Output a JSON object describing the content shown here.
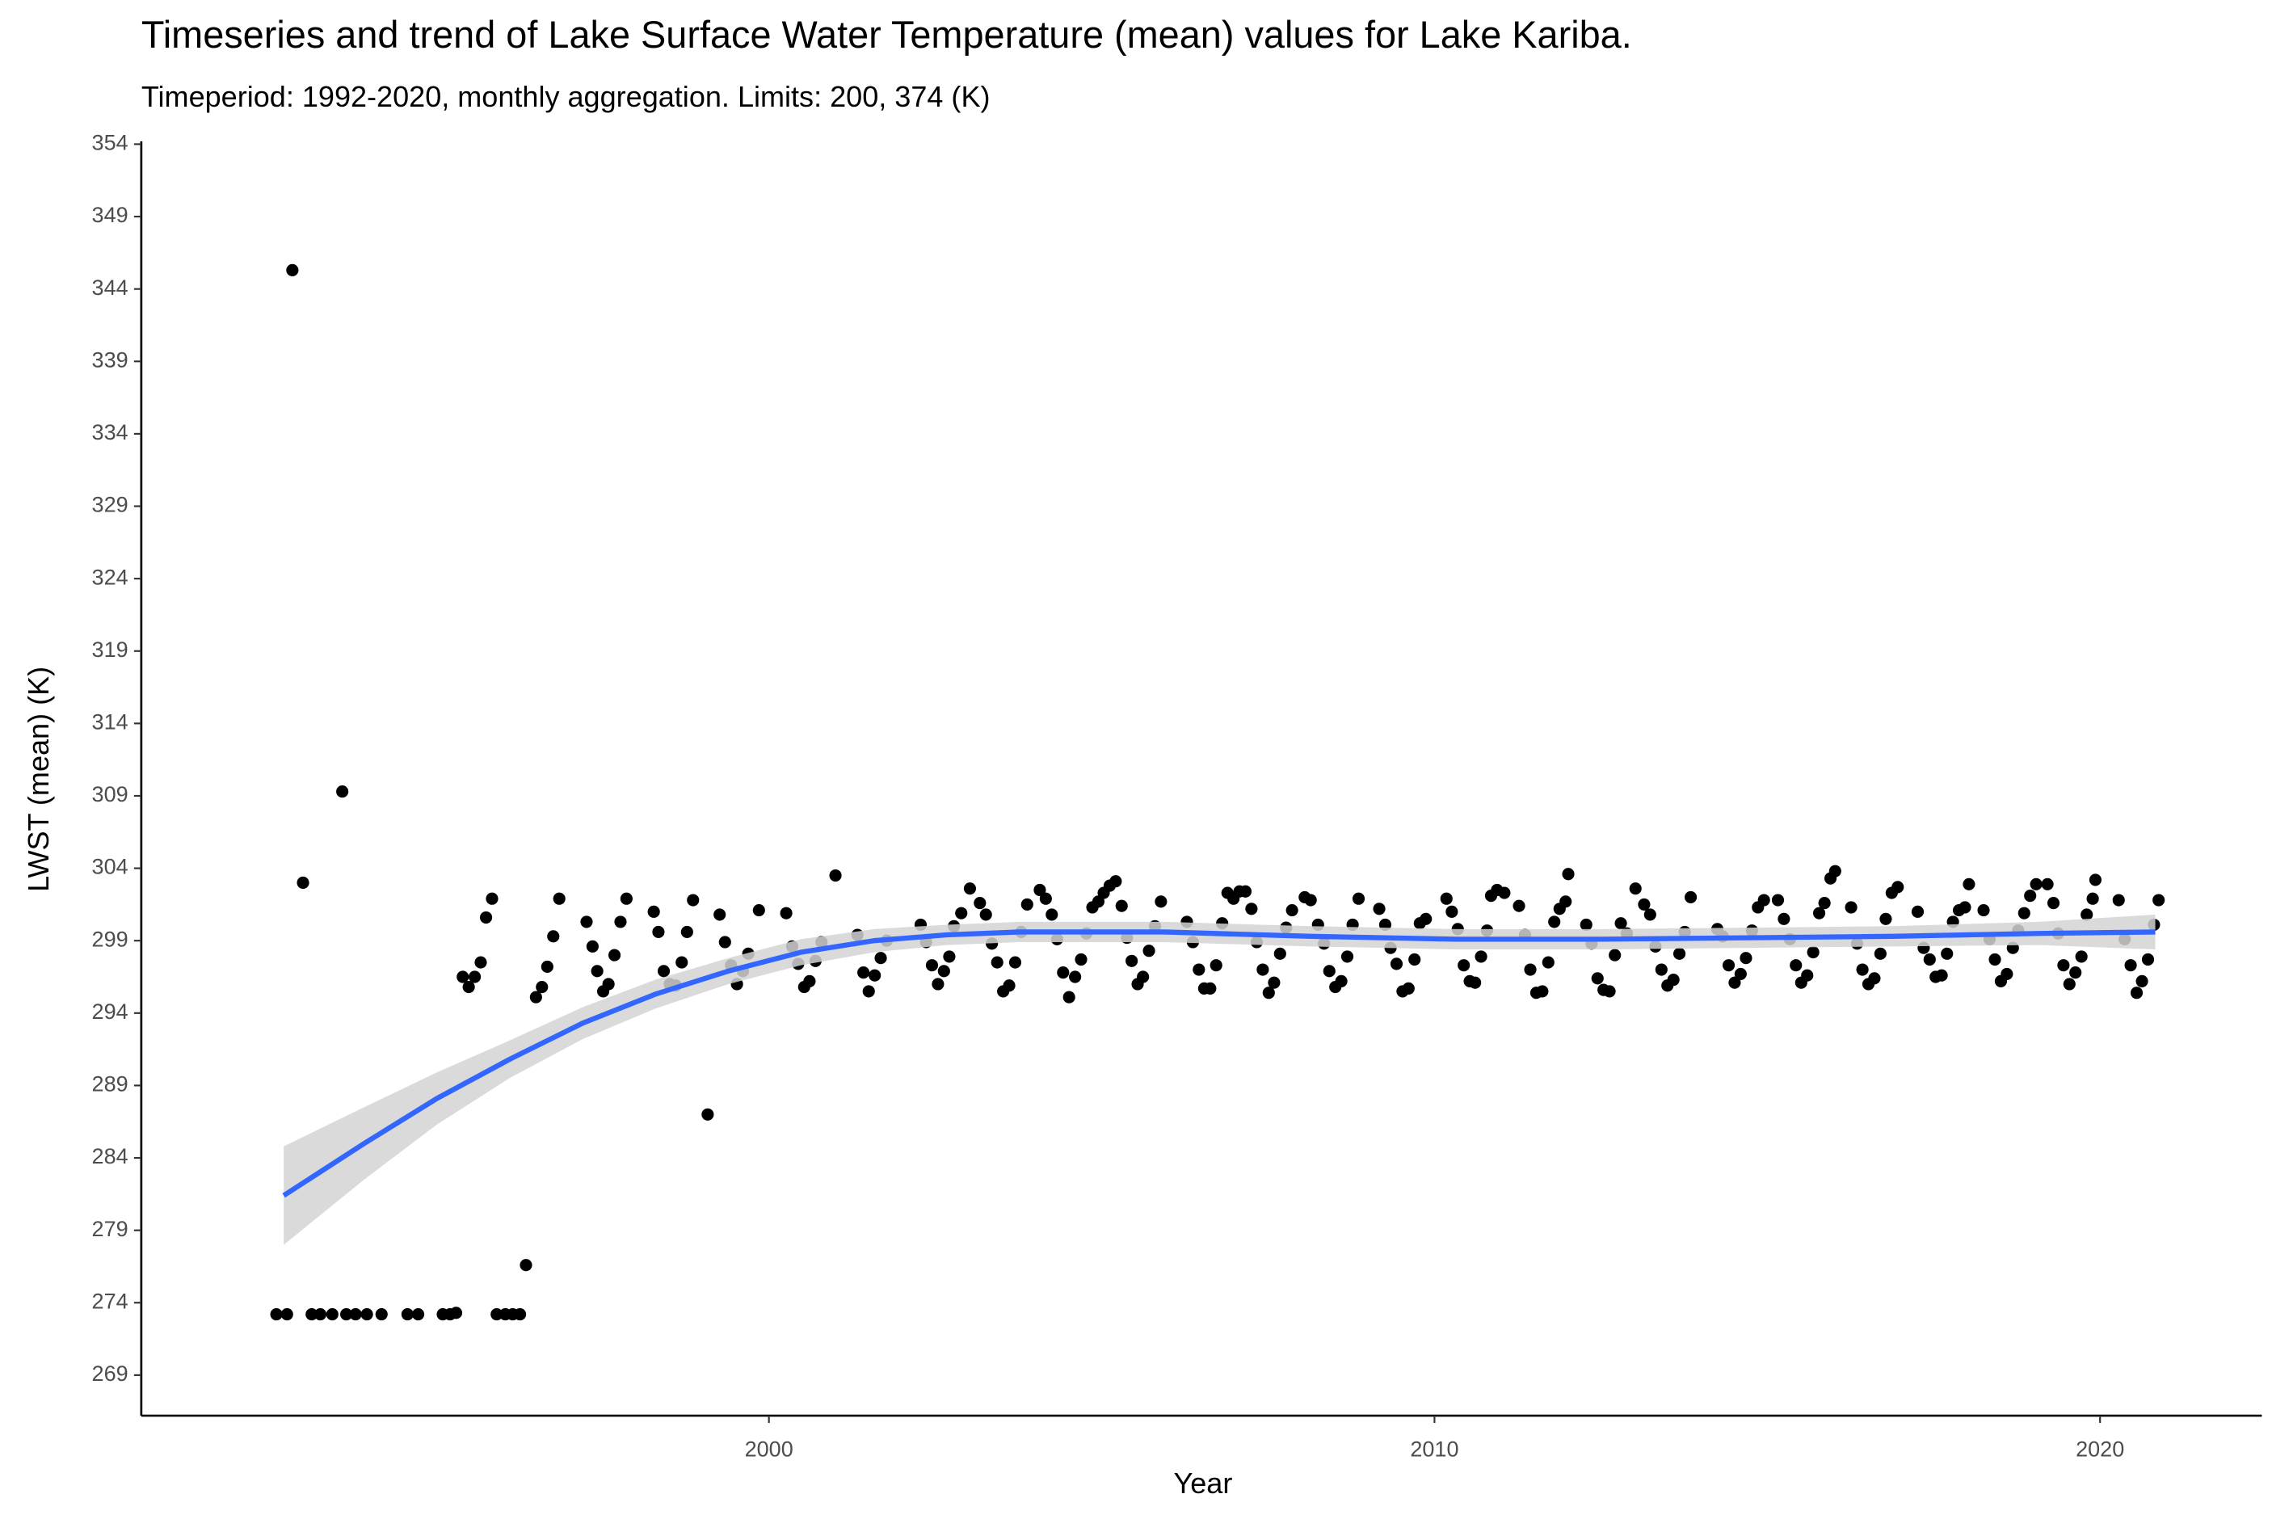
{
  "chart_data": {
    "type": "scatter",
    "title": "Timeseries and trend of Lake Surface Water Temperature (mean) values for Lake Kariba.",
    "subtitle": "Timeperiod: 1992-2020, monthly aggregation. Limits: 200, 374 (K)",
    "x_label": "Year",
    "y_label": "LWST (mean) (K)",
    "color": "#000000",
    "x": [
      1992.6,
      1992.76,
      1993.13,
      1993.26,
      1993.44,
      1993.65,
      1993.79,
      1993.96,
      1994.18,
      1994.57,
      1994.73,
      1995.1,
      1995.21,
      1995.3,
      1995.91,
      1996.04,
      1996.15,
      1996.26,
      1992.84,
      1993.0,
      1993.59,
      1996.35,
      1999.08,
      2001.0,
      1995.4,
      1995.49,
      1995.58,
      1995.67,
      1995.75,
      1995.84,
      1996.5,
      1996.59,
      1996.67,
      1996.76,
      1996.85,
      1997.26,
      1997.35,
      1997.42,
      1997.51,
      1997.59,
      1997.68,
      1997.77,
      1997.86,
      1998.27,
      1998.34,
      1998.42,
      1998.51,
      1998.6,
      1998.69,
      1998.77,
      1998.86,
      1999.26,
      1999.34,
      1999.43,
      1999.52,
      1999.61,
      1999.69,
      1999.85,
      2000.26,
      2000.35,
      2000.44,
      2000.53,
      2000.61,
      2000.7,
      2000.79,
      2001.33,
      2001.42,
      2001.5,
      2001.59,
      2001.68,
      2001.77,
      2002.28,
      2002.36,
      2002.45,
      2002.54,
      2002.63,
      2002.71,
      2002.78,
      2002.89,
      2003.02,
      2003.17,
      2003.26,
      2003.35,
      2003.43,
      2003.52,
      2003.61,
      2003.7,
      2003.79,
      2003.88,
      2004.07,
      2004.16,
      2004.25,
      2004.33,
      2004.42,
      2004.51,
      2004.6,
      2004.69,
      2004.77,
      2004.86,
      2004.95,
      2005.03,
      2005.12,
      2005.21,
      2005.3,
      2005.38,
      2005.45,
      2005.54,
      2005.62,
      2005.71,
      2005.8,
      2005.89,
      2006.28,
      2006.37,
      2006.46,
      2006.54,
      2006.63,
      2006.72,
      2006.81,
      2006.89,
      2006.98,
      2007.07,
      2007.16,
      2007.25,
      2007.33,
      2007.42,
      2007.51,
      2007.59,
      2007.68,
      2007.77,
      2007.86,
      2008.05,
      2008.14,
      2008.25,
      2008.34,
      2008.42,
      2008.51,
      2008.6,
      2008.69,
      2008.77,
      2008.86,
      2009.17,
      2009.26,
      2009.34,
      2009.43,
      2009.52,
      2009.61,
      2009.7,
      2009.78,
      2009.87,
      2010.18,
      2010.26,
      2010.35,
      2010.44,
      2010.53,
      2010.61,
      2010.7,
      2010.79,
      2010.85,
      2010.94,
      2011.05,
      2011.27,
      2011.36,
      2011.44,
      2011.53,
      2011.62,
      2011.71,
      2011.8,
      2011.88,
      2011.97,
      2012.01,
      2012.28,
      2012.36,
      2012.45,
      2012.54,
      2012.63,
      2012.71,
      2012.8,
      2012.89,
      2013.02,
      2013.15,
      2013.24,
      2013.32,
      2013.41,
      2013.5,
      2013.59,
      2013.68,
      2013.76,
      2013.85,
      2014.25,
      2014.33,
      2014.42,
      2014.51,
      2014.6,
      2014.68,
      2014.77,
      2014.86,
      2014.95,
      2015.16,
      2015.25,
      2015.34,
      2015.43,
      2015.51,
      2015.6,
      2015.69,
      2015.78,
      2015.86,
      2015.95,
      2016.02,
      2016.26,
      2016.35,
      2016.43,
      2016.52,
      2016.61,
      2016.7,
      2016.78,
      2016.87,
      2016.96,
      2017.26,
      2017.35,
      2017.44,
      2017.53,
      2017.62,
      2017.7,
      2017.79,
      2017.88,
      2017.97,
      2018.03,
      2018.25,
      2018.34,
      2018.42,
      2018.51,
      2018.6,
      2018.69,
      2018.77,
      2018.86,
      2018.95,
      2019.04,
      2019.21,
      2019.3,
      2019.37,
      2019.45,
      2019.54,
      2019.63,
      2019.72,
      2019.8,
      2019.89,
      2019.93,
      2020.28,
      2020.37,
      2020.46,
      2020.55,
      2020.63,
      2020.72,
      2020.81,
      2020.88
    ],
    "values": [
      273.2,
      273.2,
      273.2,
      273.2,
      273.2,
      273.2,
      273.2,
      273.2,
      273.2,
      273.2,
      273.2,
      273.2,
      273.2,
      273.3,
      273.2,
      273.2,
      273.2,
      273.2,
      345.3,
      303.0,
      309.3,
      276.6,
      287.0,
      303.5,
      296.5,
      295.8,
      296.5,
      297.5,
      300.6,
      301.9,
      295.1,
      295.8,
      297.2,
      299.3,
      301.9,
      300.3,
      298.6,
      296.9,
      295.5,
      296.0,
      298.0,
      300.3,
      301.9,
      301.0,
      299.6,
      296.9,
      296.0,
      295.9,
      297.5,
      299.6,
      301.8,
      300.8,
      298.9,
      297.3,
      296.0,
      296.9,
      298.1,
      301.1,
      300.9,
      298.6,
      297.4,
      295.8,
      296.2,
      297.6,
      298.9,
      299.4,
      296.8,
      295.5,
      296.6,
      297.8,
      299.0,
      300.1,
      298.9,
      297.3,
      296.0,
      296.9,
      297.9,
      300.0,
      300.9,
      302.6,
      301.6,
      300.8,
      298.8,
      297.5,
      295.5,
      295.9,
      297.5,
      299.6,
      301.5,
      302.5,
      301.9,
      300.8,
      299.1,
      296.8,
      295.1,
      296.5,
      297.7,
      299.5,
      301.3,
      301.7,
      302.3,
      302.8,
      303.1,
      301.4,
      299.2,
      297.6,
      296.0,
      296.5,
      298.3,
      300.0,
      301.7,
      300.3,
      298.9,
      297.0,
      295.7,
      295.7,
      297.3,
      300.2,
      302.3,
      301.9,
      302.4,
      302.4,
      301.2,
      298.9,
      297.0,
      295.4,
      296.1,
      298.1,
      299.9,
      301.1,
      302.0,
      301.8,
      300.1,
      298.8,
      296.9,
      295.8,
      296.2,
      297.9,
      300.1,
      301.9,
      301.2,
      300.1,
      298.5,
      297.4,
      295.5,
      295.7,
      297.7,
      300.2,
      300.5,
      301.9,
      301.0,
      299.8,
      297.3,
      296.2,
      296.1,
      297.9,
      299.7,
      302.1,
      302.5,
      302.3,
      301.4,
      299.4,
      297.0,
      295.4,
      295.5,
      297.5,
      300.3,
      301.2,
      301.7,
      303.6,
      300.1,
      298.8,
      296.4,
      295.6,
      295.5,
      298.0,
      300.2,
      299.5,
      302.6,
      301.5,
      300.8,
      298.6,
      297.0,
      295.9,
      296.3,
      298.1,
      299.6,
      302.0,
      299.8,
      299.3,
      297.3,
      296.1,
      296.7,
      297.8,
      299.7,
      301.3,
      301.8,
      301.8,
      300.5,
      299.1,
      297.3,
      296.1,
      296.6,
      298.2,
      300.9,
      301.6,
      303.3,
      303.8,
      301.3,
      298.8,
      297.0,
      296.0,
      296.4,
      298.1,
      300.5,
      302.3,
      302.7,
      301.0,
      298.5,
      297.7,
      296.5,
      296.6,
      298.1,
      300.3,
      301.1,
      301.3,
      302.9,
      301.1,
      299.1,
      297.7,
      296.2,
      296.7,
      298.5,
      299.7,
      300.9,
      302.1,
      302.9,
      302.9,
      301.6,
      299.5,
      297.3,
      296.0,
      296.8,
      297.9,
      300.8,
      301.9,
      303.2,
      301.8,
      299.1,
      297.3,
      295.4,
      296.2,
      297.7,
      300.1,
      301.8
    ],
    "trend": {
      "color": "#3366ff",
      "band_color": "#d3d3d3",
      "x": [
        1992.71,
        1993.92,
        1995.01,
        1996.1,
        1997.2,
        1998.29,
        1999.39,
        2000.48,
        2001.58,
        2002.67,
        2003.76,
        2005.95,
        2008.14,
        2010.33,
        2012.52,
        2014.7,
        2016.89,
        2019.08,
        2020.83
      ],
      "values": [
        281.4,
        285.0,
        288.1,
        290.8,
        293.3,
        295.3,
        296.9,
        298.2,
        299.0,
        299.4,
        299.6,
        299.6,
        299.3,
        299.1,
        299.1,
        299.2,
        299.3,
        299.5,
        299.6
      ],
      "lower": [
        278.0,
        282.5,
        286.3,
        289.5,
        292.2,
        294.3,
        296.0,
        297.3,
        298.2,
        298.7,
        298.9,
        298.9,
        298.6,
        298.4,
        298.4,
        298.5,
        298.6,
        298.7,
        298.4
      ],
      "upper": [
        284.8,
        287.5,
        289.9,
        292.1,
        294.4,
        296.3,
        297.8,
        299.1,
        299.8,
        300.1,
        300.3,
        300.3,
        300.0,
        299.8,
        299.8,
        299.9,
        300.0,
        300.3,
        300.8
      ]
    },
    "xlim": [
      1990.57,
      2022.43
    ],
    "ylim": [
      266.2,
      354.2
    ],
    "xticks": [
      2000,
      2010,
      2020
    ],
    "yticks": [
      269,
      274,
      279,
      284,
      289,
      294,
      299,
      304,
      309,
      314,
      319,
      324,
      329,
      334,
      339,
      344,
      349,
      354
    ]
  }
}
